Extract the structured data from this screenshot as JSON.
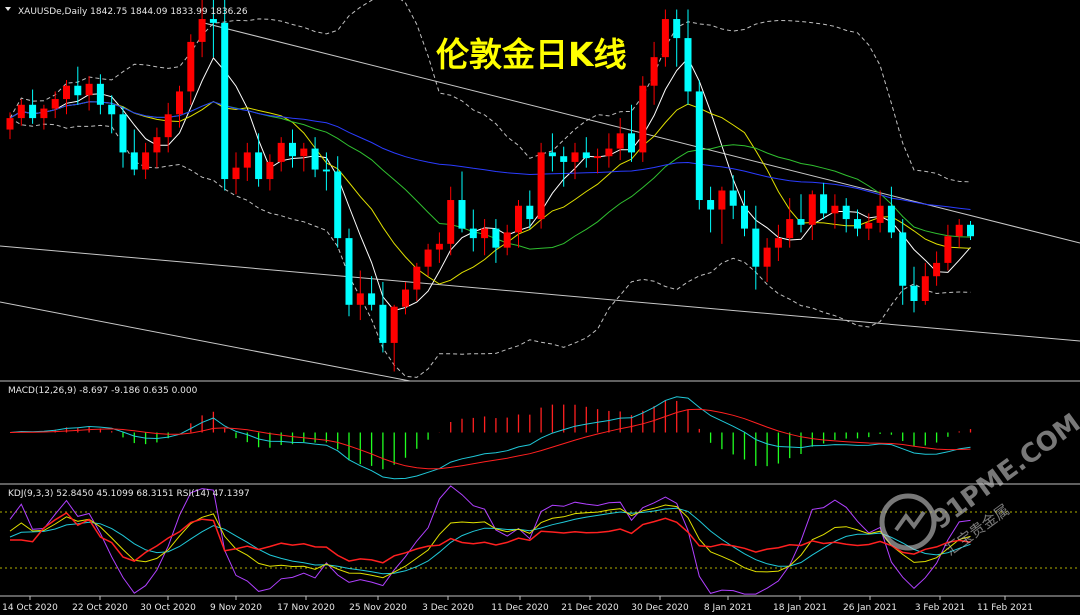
{
  "chart_data": [
    {
      "type": "candlestick",
      "panel": "price",
      "header": "XAUUSDe,Daily  1842.75 1844.09 1833.99 1836.26",
      "title": "伦敦金日K线",
      "ylim": [
        1760,
        1960
      ],
      "x_ticks": [
        "14 Oct 2020",
        "22 Oct 2020",
        "30 Oct 2020",
        "9 Nov 2020",
        "17 Nov 2020",
        "25 Nov 2020",
        "3 Dec 2020",
        "11 Dec 2020",
        "21 Dec 2020",
        "30 Dec 2020",
        "8 Jan 2021",
        "18 Jan 2021",
        "26 Jan 2021",
        "3 Feb 2021",
        "11 Feb 2021"
      ],
      "candles": [
        [
          1892,
          1901,
          1887,
          1898
        ],
        [
          1898,
          1908,
          1894,
          1905
        ],
        [
          1905,
          1913,
          1895,
          1898
        ],
        [
          1898,
          1905,
          1892,
          1903
        ],
        [
          1903,
          1912,
          1898,
          1908
        ],
        [
          1908,
          1918,
          1900,
          1915
        ],
        [
          1915,
          1925,
          1905,
          1910
        ],
        [
          1910,
          1920,
          1902,
          1916
        ],
        [
          1916,
          1921,
          1900,
          1905
        ],
        [
          1905,
          1910,
          1890,
          1900
        ],
        [
          1900,
          1904,
          1872,
          1880
        ],
        [
          1880,
          1892,
          1868,
          1871
        ],
        [
          1871,
          1885,
          1866,
          1880
        ],
        [
          1880,
          1893,
          1872,
          1888
        ],
        [
          1888,
          1906,
          1880,
          1900
        ],
        [
          1900,
          1915,
          1893,
          1912
        ],
        [
          1912,
          1942,
          1905,
          1938
        ],
        [
          1938,
          1962,
          1930,
          1950
        ],
        [
          1950,
          1960,
          1930,
          1948
        ],
        [
          1948,
          1965,
          1860,
          1866
        ],
        [
          1866,
          1880,
          1858,
          1872
        ],
        [
          1872,
          1885,
          1865,
          1880
        ],
        [
          1880,
          1890,
          1862,
          1866
        ],
        [
          1866,
          1879,
          1860,
          1875
        ],
        [
          1875,
          1888,
          1870,
          1885
        ],
        [
          1885,
          1892,
          1872,
          1878
        ],
        [
          1878,
          1885,
          1870,
          1882
        ],
        [
          1882,
          1888,
          1867,
          1871
        ],
        [
          1871,
          1880,
          1860,
          1870
        ],
        [
          1870,
          1878,
          1830,
          1835
        ],
        [
          1835,
          1840,
          1794,
          1800
        ],
        [
          1800,
          1818,
          1792,
          1806
        ],
        [
          1806,
          1815,
          1797,
          1800
        ],
        [
          1800,
          1812,
          1775,
          1780
        ],
        [
          1780,
          1800,
          1765,
          1799
        ],
        [
          1799,
          1812,
          1795,
          1808
        ],
        [
          1808,
          1822,
          1802,
          1820
        ],
        [
          1820,
          1832,
          1815,
          1829
        ],
        [
          1829,
          1838,
          1822,
          1832
        ],
        [
          1832,
          1862,
          1826,
          1855
        ],
        [
          1855,
          1870,
          1838,
          1840
        ],
        [
          1840,
          1850,
          1828,
          1835
        ],
        [
          1835,
          1845,
          1826,
          1840
        ],
        [
          1840,
          1845,
          1822,
          1830
        ],
        [
          1830,
          1842,
          1826,
          1838
        ],
        [
          1838,
          1855,
          1830,
          1852
        ],
        [
          1852,
          1860,
          1840,
          1845
        ],
        [
          1845,
          1885,
          1840,
          1880
        ],
        [
          1880,
          1890,
          1870,
          1878
        ],
        [
          1878,
          1883,
          1862,
          1875
        ],
        [
          1875,
          1885,
          1866,
          1880
        ],
        [
          1880,
          1888,
          1872,
          1877
        ],
        [
          1877,
          1882,
          1869,
          1878
        ],
        [
          1878,
          1890,
          1872,
          1882
        ],
        [
          1882,
          1898,
          1876,
          1890
        ],
        [
          1890,
          1905,
          1875,
          1880
        ],
        [
          1880,
          1920,
          1875,
          1915
        ],
        [
          1915,
          1938,
          1905,
          1930
        ],
        [
          1930,
          1955,
          1925,
          1950
        ],
        [
          1950,
          1955,
          1925,
          1940
        ],
        [
          1940,
          1955,
          1905,
          1912
        ],
        [
          1912,
          1918,
          1850,
          1855
        ],
        [
          1855,
          1862,
          1838,
          1850
        ],
        [
          1850,
          1862,
          1832,
          1860
        ],
        [
          1860,
          1868,
          1845,
          1852
        ],
        [
          1852,
          1860,
          1836,
          1840
        ],
        [
          1840,
          1852,
          1808,
          1820
        ],
        [
          1820,
          1835,
          1812,
          1830
        ],
        [
          1830,
          1842,
          1823,
          1835
        ],
        [
          1835,
          1856,
          1830,
          1845
        ],
        [
          1845,
          1858,
          1838,
          1842
        ],
        [
          1842,
          1860,
          1834,
          1858
        ],
        [
          1858,
          1864,
          1845,
          1848
        ],
        [
          1848,
          1858,
          1840,
          1852
        ],
        [
          1852,
          1856,
          1838,
          1845
        ],
        [
          1845,
          1850,
          1836,
          1840
        ],
        [
          1840,
          1848,
          1834,
          1843
        ],
        [
          1843,
          1860,
          1838,
          1852
        ],
        [
          1852,
          1862,
          1835,
          1838
        ],
        [
          1838,
          1845,
          1800,
          1810
        ],
        [
          1810,
          1820,
          1796,
          1802
        ],
        [
          1802,
          1822,
          1800,
          1815
        ],
        [
          1815,
          1828,
          1810,
          1822
        ],
        [
          1822,
          1842,
          1818,
          1836
        ],
        [
          1836,
          1845,
          1830,
          1842
        ],
        [
          1842,
          1844,
          1834,
          1836
        ]
      ]
    },
    {
      "type": "bar+line",
      "panel": "macd",
      "header": "MACD(12,26,9) -8.697 -9.186 0.635 0.000",
      "ylim": [
        -30,
        30
      ]
    },
    {
      "type": "line",
      "panel": "kdj",
      "header": "KDJ(9,3,3) 52.8450 45.1099 68.3151  RSI(14) 47.1397",
      "ylim": [
        -10,
        110
      ],
      "levels": [
        20,
        80
      ]
    }
  ],
  "watermark": {
    "site": "91PME.COM",
    "sub": "汇宝贵金属"
  },
  "colors": {
    "up": "#ff0000",
    "down": "#00ffff",
    "grid": "#c0c0c0",
    "title": "#ffff00"
  }
}
